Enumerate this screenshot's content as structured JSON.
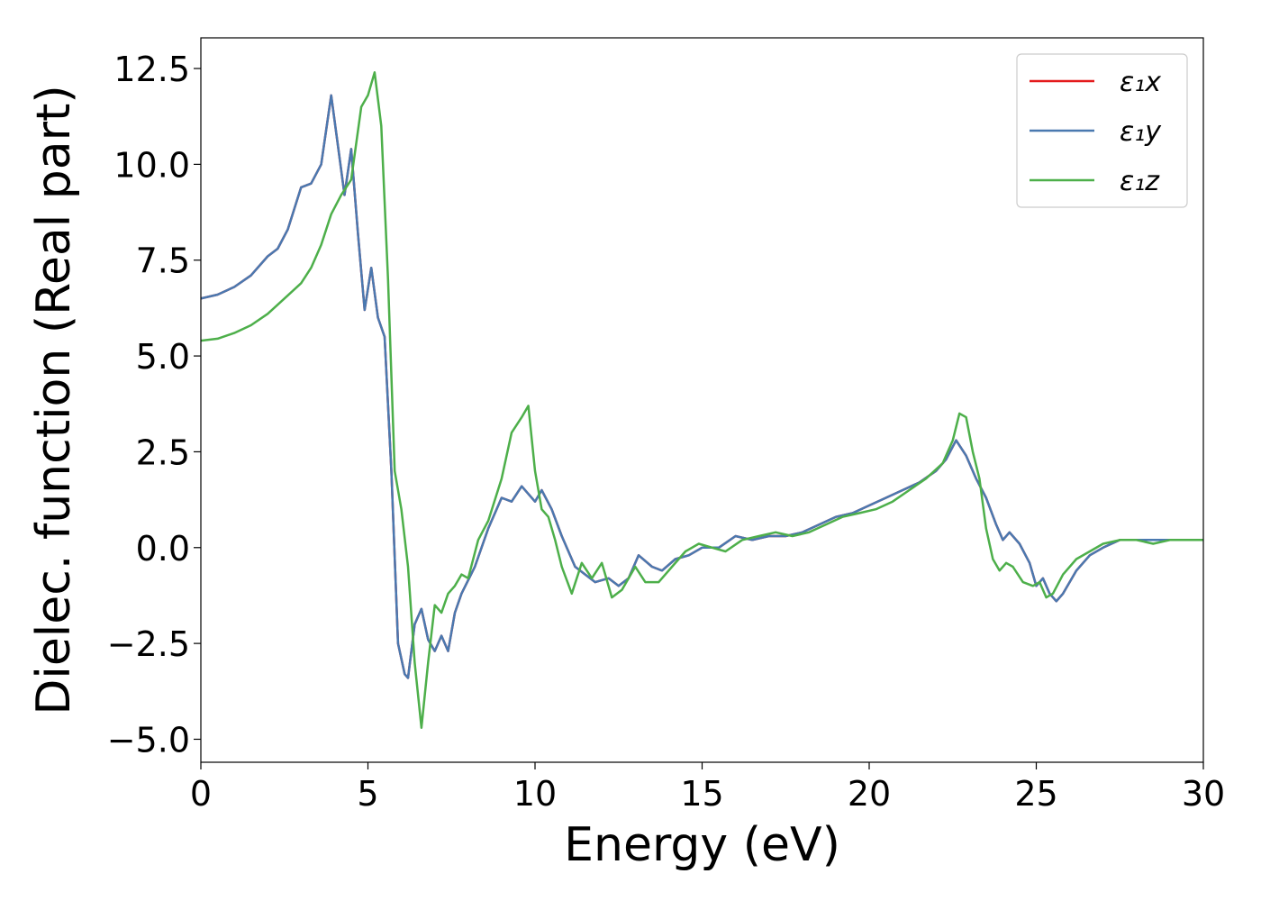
{
  "chart_data": {
    "type": "line",
    "xlabel": "Energy (eV)",
    "ylabel": "Dielec. function (Real part)",
    "xlim": [
      0,
      30
    ],
    "ylim": [
      -5.6,
      13.3
    ],
    "xticks": [
      0,
      5,
      10,
      15,
      20,
      25,
      30
    ],
    "xtick_labels": [
      "0",
      "5",
      "10",
      "15",
      "20",
      "25",
      "30"
    ],
    "yticks": [
      -5.0,
      -2.5,
      0.0,
      2.5,
      5.0,
      7.5,
      10.0,
      12.5
    ],
    "ytick_labels": [
      "−5.0",
      "−2.5",
      "0.0",
      "2.5",
      "5.0",
      "7.5",
      "10.0",
      "12.5"
    ],
    "grid": false,
    "legend_position": "top-right",
    "series": [
      {
        "name": "ε₁x",
        "color": "#e41a1c",
        "x": [
          0,
          0.5,
          1.0,
          1.5,
          2.0,
          2.3,
          2.6,
          3.0,
          3.3,
          3.6,
          3.9,
          4.1,
          4.3,
          4.5,
          4.7,
          4.9,
          5.1,
          5.3,
          5.5,
          5.7,
          5.9,
          6.1,
          6.2,
          6.4,
          6.6,
          6.8,
          7.0,
          7.2,
          7.4,
          7.6,
          7.8,
          8.2,
          8.6,
          9.0,
          9.3,
          9.6,
          9.8,
          10.0,
          10.2,
          10.5,
          10.8,
          11.2,
          11.5,
          11.8,
          12.2,
          12.5,
          12.8,
          13.1,
          13.5,
          13.8,
          14.2,
          14.6,
          15.0,
          15.5,
          16.0,
          16.5,
          17.0,
          17.5,
          18.0,
          18.5,
          19.0,
          19.5,
          20.0,
          20.5,
          21.0,
          21.5,
          22.0,
          22.3,
          22.6,
          22.9,
          23.2,
          23.5,
          23.8,
          24.0,
          24.2,
          24.5,
          24.8,
          25.0,
          25.2,
          25.4,
          25.6,
          25.8,
          26.2,
          26.6,
          27.0,
          27.5,
          28.0,
          28.5,
          29.0,
          29.5,
          30.0
        ],
        "y": [
          6.5,
          6.6,
          6.8,
          7.1,
          7.6,
          7.8,
          8.3,
          9.4,
          9.5,
          10.0,
          11.8,
          10.5,
          9.2,
          10.4,
          8.2,
          6.2,
          7.3,
          6.0,
          5.5,
          2.0,
          -2.5,
          -3.3,
          -3.4,
          -2.0,
          -1.6,
          -2.4,
          -2.7,
          -2.3,
          -2.7,
          -1.7,
          -1.2,
          -0.5,
          0.5,
          1.3,
          1.2,
          1.6,
          1.4,
          1.2,
          1.5,
          1.0,
          0.3,
          -0.5,
          -0.7,
          -0.9,
          -0.8,
          -1.0,
          -0.8,
          -0.2,
          -0.5,
          -0.6,
          -0.3,
          -0.2,
          0.0,
          0.0,
          0.3,
          0.2,
          0.3,
          0.3,
          0.4,
          0.6,
          0.8,
          0.9,
          1.1,
          1.3,
          1.5,
          1.7,
          2.0,
          2.3,
          2.8,
          2.4,
          1.8,
          1.3,
          0.6,
          0.2,
          0.4,
          0.1,
          -0.4,
          -1.0,
          -0.8,
          -1.2,
          -1.4,
          -1.2,
          -0.6,
          -0.2,
          0.0,
          0.2,
          0.2,
          0.2,
          0.2,
          0.2,
          0.2
        ]
      },
      {
        "name": "ε₁y",
        "color": "#4a79b0",
        "x": [
          0,
          0.5,
          1.0,
          1.5,
          2.0,
          2.3,
          2.6,
          3.0,
          3.3,
          3.6,
          3.9,
          4.1,
          4.3,
          4.5,
          4.7,
          4.9,
          5.1,
          5.3,
          5.5,
          5.7,
          5.9,
          6.1,
          6.2,
          6.4,
          6.6,
          6.8,
          7.0,
          7.2,
          7.4,
          7.6,
          7.8,
          8.2,
          8.6,
          9.0,
          9.3,
          9.6,
          9.8,
          10.0,
          10.2,
          10.5,
          10.8,
          11.2,
          11.5,
          11.8,
          12.2,
          12.5,
          12.8,
          13.1,
          13.5,
          13.8,
          14.2,
          14.6,
          15.0,
          15.5,
          16.0,
          16.5,
          17.0,
          17.5,
          18.0,
          18.5,
          19.0,
          19.5,
          20.0,
          20.5,
          21.0,
          21.5,
          22.0,
          22.3,
          22.6,
          22.9,
          23.2,
          23.5,
          23.8,
          24.0,
          24.2,
          24.5,
          24.8,
          25.0,
          25.2,
          25.4,
          25.6,
          25.8,
          26.2,
          26.6,
          27.0,
          27.5,
          28.0,
          28.5,
          29.0,
          29.5,
          30.0
        ],
        "y": [
          6.5,
          6.6,
          6.8,
          7.1,
          7.6,
          7.8,
          8.3,
          9.4,
          9.5,
          10.0,
          11.8,
          10.5,
          9.2,
          10.4,
          8.2,
          6.2,
          7.3,
          6.0,
          5.5,
          2.0,
          -2.5,
          -3.3,
          -3.4,
          -2.0,
          -1.6,
          -2.4,
          -2.7,
          -2.3,
          -2.7,
          -1.7,
          -1.2,
          -0.5,
          0.5,
          1.3,
          1.2,
          1.6,
          1.4,
          1.2,
          1.5,
          1.0,
          0.3,
          -0.5,
          -0.7,
          -0.9,
          -0.8,
          -1.0,
          -0.8,
          -0.2,
          -0.5,
          -0.6,
          -0.3,
          -0.2,
          0.0,
          0.0,
          0.3,
          0.2,
          0.3,
          0.3,
          0.4,
          0.6,
          0.8,
          0.9,
          1.1,
          1.3,
          1.5,
          1.7,
          2.0,
          2.3,
          2.8,
          2.4,
          1.8,
          1.3,
          0.6,
          0.2,
          0.4,
          0.1,
          -0.4,
          -1.0,
          -0.8,
          -1.2,
          -1.4,
          -1.2,
          -0.6,
          -0.2,
          0.0,
          0.2,
          0.2,
          0.2,
          0.2,
          0.2,
          0.2
        ]
      },
      {
        "name": "ε₁z",
        "color": "#4daf4a",
        "x": [
          0,
          0.5,
          1.0,
          1.5,
          2.0,
          2.5,
          3.0,
          3.3,
          3.6,
          3.9,
          4.2,
          4.5,
          4.8,
          5.0,
          5.2,
          5.4,
          5.6,
          5.8,
          6.0,
          6.2,
          6.4,
          6.6,
          6.8,
          7.0,
          7.2,
          7.4,
          7.6,
          7.8,
          8.0,
          8.3,
          8.6,
          9.0,
          9.3,
          9.6,
          9.8,
          10.0,
          10.2,
          10.4,
          10.6,
          10.8,
          11.1,
          11.4,
          11.7,
          12.0,
          12.3,
          12.6,
          13.0,
          13.3,
          13.7,
          14.1,
          14.5,
          14.9,
          15.3,
          15.7,
          16.2,
          16.7,
          17.2,
          17.7,
          18.2,
          18.7,
          19.2,
          19.7,
          20.2,
          20.7,
          21.2,
          21.7,
          22.2,
          22.5,
          22.7,
          22.9,
          23.1,
          23.3,
          23.5,
          23.7,
          23.9,
          24.1,
          24.3,
          24.6,
          24.9,
          25.1,
          25.3,
          25.5,
          25.8,
          26.2,
          26.6,
          27.0,
          27.5,
          28.0,
          28.5,
          29.0,
          29.5,
          30.0
        ],
        "y": [
          5.4,
          5.45,
          5.6,
          5.8,
          6.1,
          6.5,
          6.9,
          7.3,
          7.9,
          8.7,
          9.2,
          9.6,
          11.5,
          11.8,
          12.4,
          11.0,
          7.0,
          2.0,
          1.0,
          -0.5,
          -3.0,
          -4.7,
          -3.0,
          -1.5,
          -1.7,
          -1.2,
          -1.0,
          -0.7,
          -0.8,
          0.2,
          0.7,
          1.8,
          3.0,
          3.4,
          3.7,
          2.0,
          1.0,
          0.8,
          0.2,
          -0.5,
          -1.2,
          -0.4,
          -0.8,
          -0.4,
          -1.3,
          -1.1,
          -0.5,
          -0.9,
          -0.9,
          -0.5,
          -0.1,
          0.1,
          0.0,
          -0.1,
          0.2,
          0.3,
          0.4,
          0.3,
          0.4,
          0.6,
          0.8,
          0.9,
          1.0,
          1.2,
          1.5,
          1.8,
          2.2,
          2.8,
          3.5,
          3.4,
          2.5,
          1.8,
          0.5,
          -0.3,
          -0.6,
          -0.4,
          -0.5,
          -0.9,
          -1.0,
          -0.9,
          -1.3,
          -1.2,
          -0.7,
          -0.3,
          -0.1,
          0.1,
          0.2,
          0.2,
          0.1,
          0.2,
          0.2,
          0.2
        ]
      }
    ]
  }
}
